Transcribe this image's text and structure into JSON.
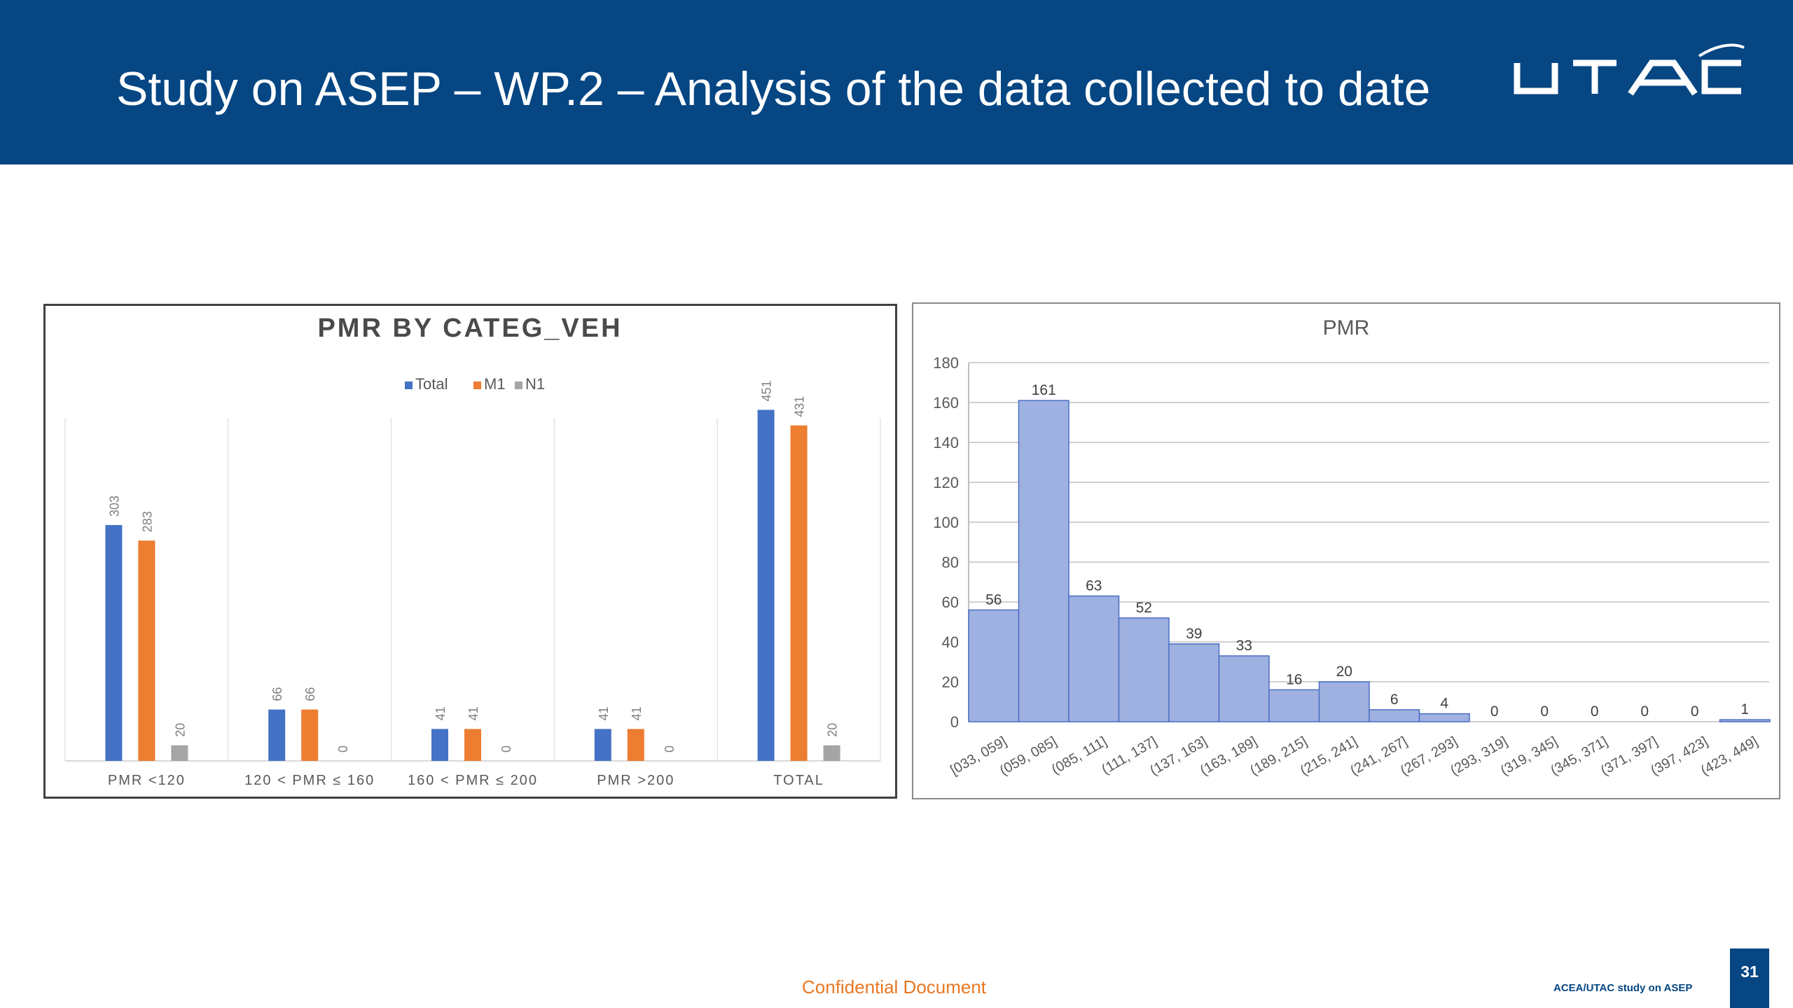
{
  "header": {
    "title": "Study on ASEP – WP.2 – Analysis of the data collected to date",
    "logo_text": "UTAC"
  },
  "footer": {
    "confidential": "Confidential Document",
    "study_label": "ACEA/UTAC study on ASEP",
    "page_number": "31"
  },
  "colors": {
    "header_bg": "#054683",
    "total": "#4472c4",
    "m1": "#ed7d31",
    "n1": "#a5a5a5",
    "histogram_fill": "#9fb1e0",
    "histogram_stroke": "#4a6fc5",
    "footer_accent": "#e87722"
  },
  "chart_data": [
    {
      "type": "bar",
      "title": "PMR BY CATEG_VEH",
      "categories": [
        "PMR <120",
        "120 < PMR ≤ 160",
        "160 < PMR ≤ 200",
        "PMR >200",
        "TOTAL"
      ],
      "series": [
        {
          "name": "Total",
          "values": [
            303,
            66,
            41,
            41,
            451
          ]
        },
        {
          "name": "M1",
          "values": [
            283,
            66,
            41,
            41,
            431
          ]
        },
        {
          "name": "N1",
          "values": [
            20,
            0,
            0,
            0,
            20
          ]
        }
      ],
      "ylim": [
        0,
        500
      ],
      "legend": "top-center",
      "grid": false,
      "data_labels": true
    },
    {
      "type": "bar",
      "title": "PMR",
      "categories": [
        "[033, 059]",
        "(059, 085]",
        "(085, 111]",
        "(111, 137]",
        "(137, 163]",
        "(163, 189]",
        "(189, 215]",
        "(215, 241]",
        "(241, 267]",
        "(267, 293]",
        "(293, 319]",
        "(319, 345]",
        "(345, 371]",
        "(371, 397]",
        "(397, 423]",
        "(423, 449]"
      ],
      "values": [
        56,
        161,
        63,
        52,
        39,
        33,
        16,
        20,
        6,
        4,
        0,
        0,
        0,
        0,
        0,
        1
      ],
      "ylim": [
        0,
        180
      ],
      "yticks": [
        0,
        20,
        40,
        60,
        80,
        100,
        120,
        140,
        160,
        180
      ],
      "grid": true,
      "data_labels": true
    }
  ]
}
